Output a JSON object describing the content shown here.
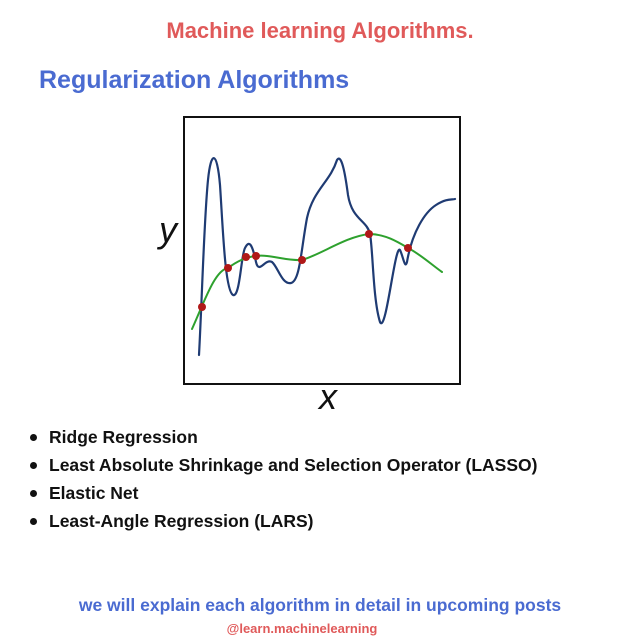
{
  "header": {
    "title": "Machine learning Algorithms.",
    "section_title": "Regularization Algorithms"
  },
  "figure": {
    "y_label": "y",
    "x_label": "x",
    "colors": {
      "overfit_curve": "#1f3b73",
      "regularized_curve": "#2ea12e",
      "data_points": "#b01818",
      "frame": "#111111"
    }
  },
  "algorithms": [
    "Ridge Regression",
    "Least Absolute Shrinkage and Selection Operator (LASSO)",
    "Elastic Net",
    "Least-Angle Regression (LARS)"
  ],
  "footer": {
    "note": "we will explain each algorithm in detail in upcoming posts",
    "handle": "@learn.machinelearning"
  },
  "colors": {
    "accent_red": "#e05a5a",
    "accent_blue": "#4a6bd1"
  }
}
